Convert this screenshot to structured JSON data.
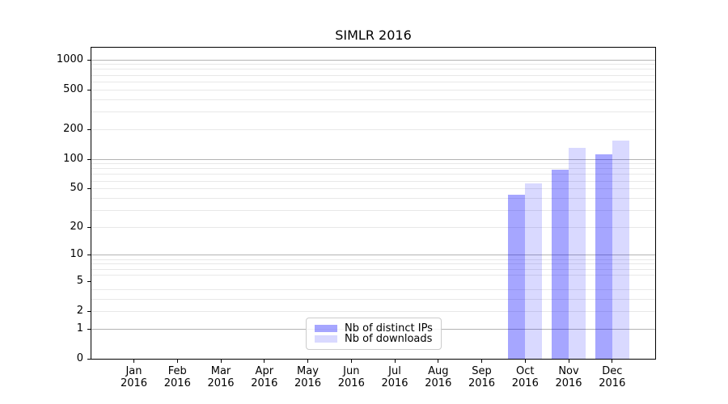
{
  "chart_data": {
    "type": "bar",
    "title": "SIMLR 2016",
    "x_categories": [
      "Jan",
      "Feb",
      "Mar",
      "Apr",
      "May",
      "Jun",
      "Jul",
      "Aug",
      "Sep",
      "Oct",
      "Nov",
      "Dec"
    ],
    "x_year": "2016",
    "series": [
      {
        "name": "Nb of distinct IPs",
        "color": "rgba(0,0,255,0.35)",
        "values": [
          0,
          0,
          0,
          0,
          0,
          0,
          0,
          0,
          0,
          43,
          78,
          112
        ]
      },
      {
        "name": "Nb of downloads",
        "color": "rgba(0,0,255,0.15)",
        "values": [
          0,
          0,
          0,
          0,
          0,
          0,
          0,
          0,
          0,
          56,
          128,
          152
        ]
      }
    ],
    "yscale": "log1p",
    "ylim": [
      0,
      1310
    ],
    "y_tick_labels": [
      0,
      1,
      2,
      5,
      10,
      20,
      50,
      100,
      200,
      500,
      1000
    ],
    "y_major_grid": [
      1,
      10,
      100,
      1000
    ],
    "y_minor_grid": [
      2,
      3,
      4,
      6,
      7,
      8,
      9,
      20,
      30,
      40,
      50,
      60,
      70,
      80,
      90,
      200,
      300,
      400,
      500,
      600,
      700,
      800,
      900
    ],
    "grid": true,
    "legend_location": "lower center"
  },
  "colors": {
    "axis": "#000000",
    "major_grid": "#b3b3b3",
    "minor_grid": "#e8e8e8",
    "legend_border": "#cccccc",
    "text": "#000000"
  }
}
